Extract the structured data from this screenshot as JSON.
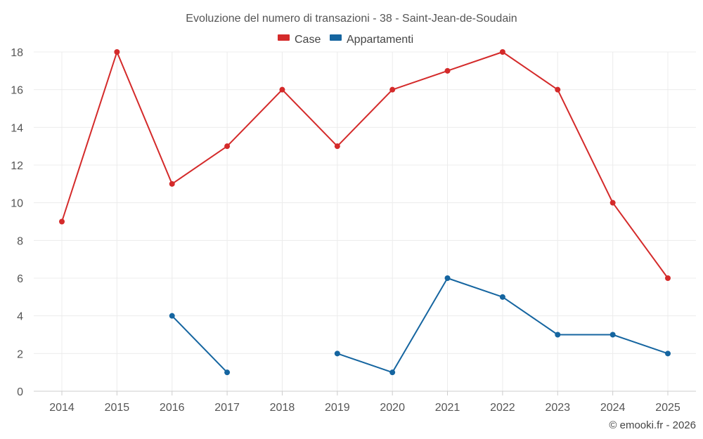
{
  "chart_data": {
    "type": "line",
    "title": "Evoluzione del numero di transazioni - 38 - Saint-Jean-de-Soudain",
    "categories": [
      "2014",
      "2015",
      "2016",
      "2017",
      "2018",
      "2019",
      "2020",
      "2021",
      "2022",
      "2023",
      "2024",
      "2025"
    ],
    "series": [
      {
        "name": "Case",
        "color": "#d42a2a",
        "values": [
          9,
          18,
          11,
          13,
          16,
          13,
          16,
          17,
          18,
          16,
          10,
          6
        ]
      },
      {
        "name": "Appartamenti",
        "color": "#1565a0",
        "values": [
          null,
          null,
          4,
          1,
          null,
          2,
          1,
          6,
          5,
          3,
          3,
          2
        ]
      }
    ],
    "xlabel": "",
    "ylabel": "",
    "ylim": [
      0,
      18
    ],
    "yticks": [
      0,
      2,
      4,
      6,
      8,
      10,
      12,
      14,
      16,
      18
    ],
    "grid": true,
    "legend": "top-center"
  },
  "credit": "© emooki.fr - 2026"
}
